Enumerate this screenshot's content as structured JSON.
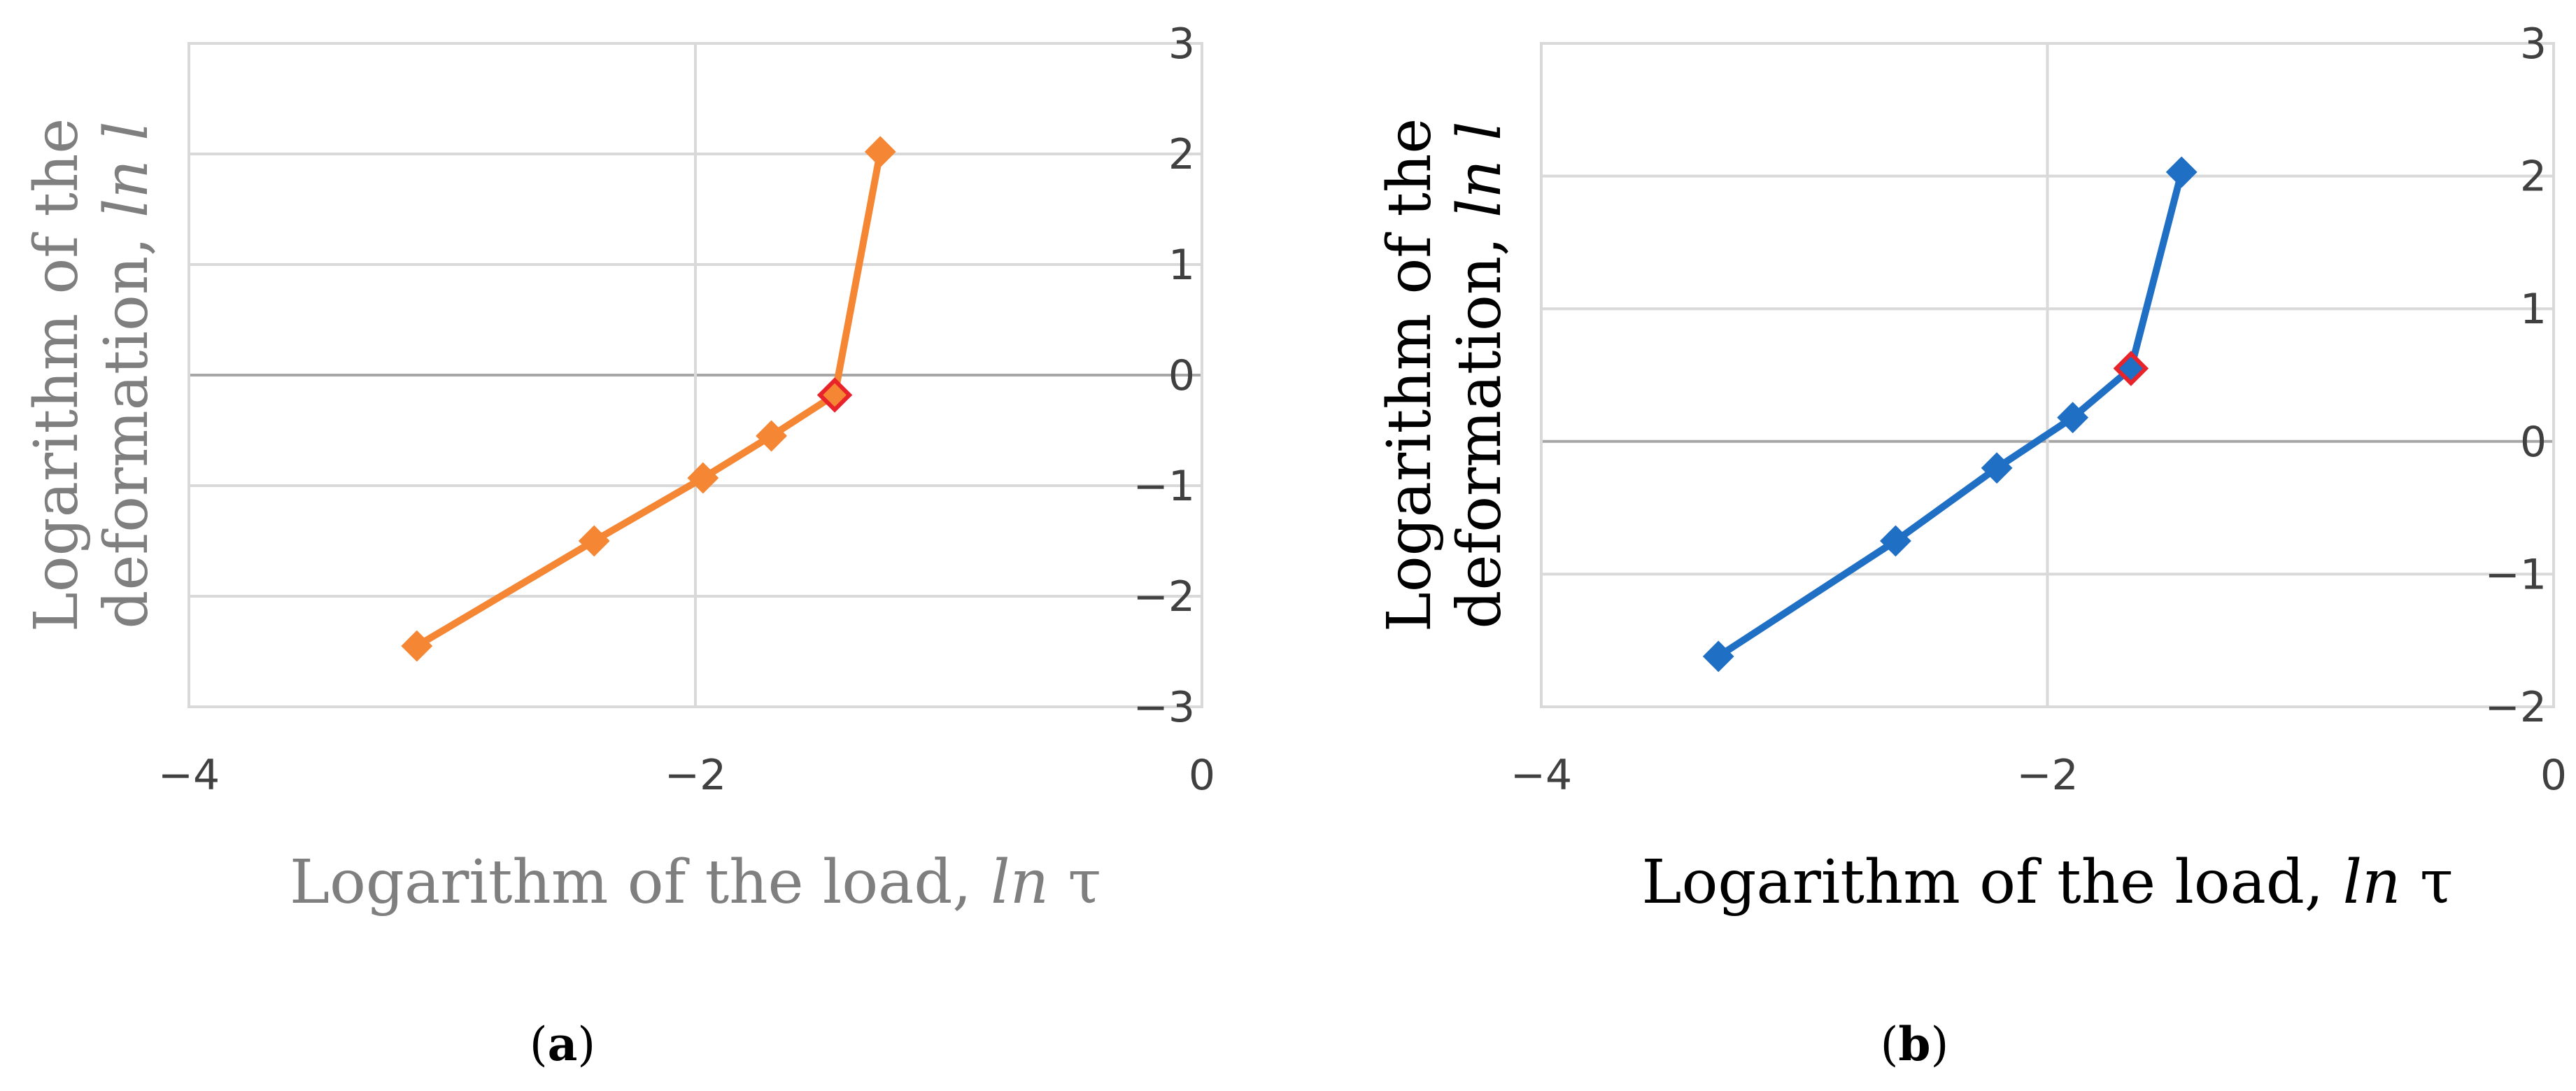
{
  "chart_data": [
    {
      "type": "line",
      "panel_label": "a",
      "xlabel": "Logarithm of the load, ",
      "xlabel_italic": "ln",
      "xlabel_symbol": " τ",
      "ylabel_line1": "Logarithm of the",
      "ylabel_line2": "deformation, ",
      "ylabel_italic": "ln l",
      "xlim": [
        -4,
        0
      ],
      "ylim": [
        -3,
        3
      ],
      "x_ticks": [
        -4,
        -2,
        0
      ],
      "y_ticks": [
        -3,
        -2,
        -1,
        0,
        1,
        2,
        3
      ],
      "y_axis_position": "right",
      "grid": true,
      "series_color": "#f58634",
      "highlight_color": "#e8232a",
      "axis_title_color": "#7f7f7f",
      "points": [
        {
          "x": -3.1,
          "y": -2.45
        },
        {
          "x": -2.4,
          "y": -1.5
        },
        {
          "x": -1.97,
          "y": -0.93
        },
        {
          "x": -1.7,
          "y": -0.55
        },
        {
          "x": -1.45,
          "y": -0.18,
          "highlight": true
        },
        {
          "x": -1.27,
          "y": 2.02
        }
      ]
    },
    {
      "type": "line",
      "panel_label": "b",
      "xlabel": "Logarithm of the load, ",
      "xlabel_italic": "ln",
      "xlabel_symbol": " τ",
      "ylabel_line1": "Logarithm of the",
      "ylabel_line2": "deformation, ",
      "ylabel_italic": "ln l",
      "xlim": [
        -4,
        0
      ],
      "ylim": [
        -2,
        3
      ],
      "x_ticks": [
        -4,
        -2,
        0
      ],
      "y_ticks": [
        -2,
        -1,
        0,
        1,
        2,
        3
      ],
      "y_axis_position": "right",
      "grid": true,
      "series_color": "#1f6fc5",
      "highlight_color": "#e8232a",
      "axis_title_color": "#000000",
      "points": [
        {
          "x": -3.3,
          "y": -1.62
        },
        {
          "x": -2.6,
          "y": -0.75
        },
        {
          "x": -2.2,
          "y": -0.2
        },
        {
          "x": -1.9,
          "y": 0.18
        },
        {
          "x": -1.67,
          "y": 0.55,
          "highlight": true
        },
        {
          "x": -1.47,
          "y": 2.03
        }
      ]
    }
  ]
}
